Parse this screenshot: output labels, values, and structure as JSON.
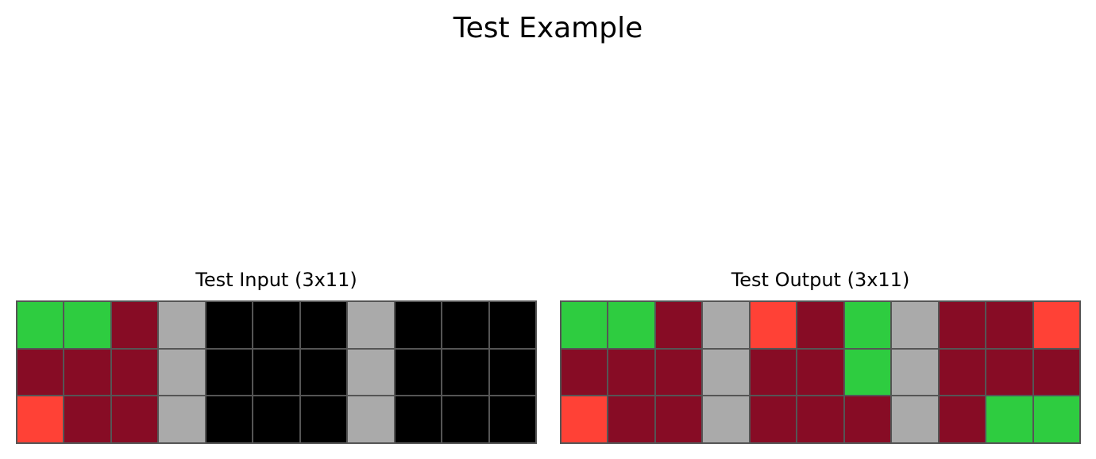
{
  "title": "Test Example",
  "palette": {
    "0": "#000000",
    "2": "#FF4136",
    "3": "#2ECC40",
    "5": "#AAAAAA",
    "9": "#870C25"
  },
  "panels": [
    {
      "id": "input",
      "title": "Test Input (3x11)",
      "grid": [
        [
          3,
          3,
          9,
          5,
          0,
          0,
          0,
          5,
          0,
          0,
          0
        ],
        [
          9,
          9,
          9,
          5,
          0,
          0,
          0,
          5,
          0,
          0,
          0
        ],
        [
          2,
          9,
          9,
          5,
          0,
          0,
          0,
          5,
          0,
          0,
          0
        ]
      ]
    },
    {
      "id": "output",
      "title": "Test Output (3x11)",
      "grid": [
        [
          3,
          3,
          9,
          5,
          2,
          9,
          3,
          5,
          9,
          9,
          2
        ],
        [
          9,
          9,
          9,
          5,
          9,
          9,
          3,
          5,
          9,
          9,
          9
        ],
        [
          2,
          9,
          9,
          5,
          9,
          9,
          9,
          5,
          9,
          3,
          3
        ]
      ]
    }
  ]
}
